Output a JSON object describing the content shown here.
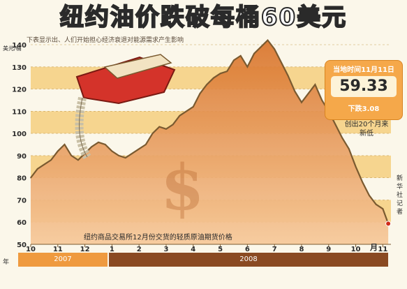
{
  "title": "纽约油价跌破每桶60美元",
  "subtitle": "下表显示出、人们开始担心经济衰退对能源需求产生影响",
  "unit_label": "美元/桶",
  "price_box": {
    "date": "当地时间11月11日",
    "value": "59.33",
    "change": "下跌3.08",
    "note": "创出20个月来新低"
  },
  "bottom_note": "纽约商品交易所12月份交货的轻质原油期货价格",
  "side_text": "新华社记者",
  "year_label": "年",
  "colors": {
    "band": "#f6d58f",
    "area_top": "#d9742a",
    "area_bottom": "#f6c899",
    "line": "#7a5a30",
    "accent": "#f5a84a",
    "year_2008": "#8a4a22"
  },
  "chart_data": {
    "type": "area",
    "title": "纽约油价跌破每桶60美元",
    "xlabel": "月",
    "ylabel": "美元/桶",
    "ylim": [
      50,
      140
    ],
    "yticks": [
      50,
      60,
      70,
      80,
      90,
      100,
      110,
      120,
      130,
      140
    ],
    "xtick_labels": [
      "10",
      "11",
      "12",
      "1",
      "2",
      "3",
      "4",
      "5",
      "6",
      "7",
      "8",
      "9",
      "10",
      "11"
    ],
    "years": [
      {
        "label": "2007",
        "months": [
          "10",
          "11",
          "12"
        ]
      },
      {
        "label": "2008",
        "months": [
          "1",
          "2",
          "3",
          "4",
          "5",
          "6",
          "7",
          "8",
          "9",
          "10",
          "11"
        ]
      }
    ],
    "x": [
      0,
      0.25,
      0.5,
      0.75,
      1,
      1.25,
      1.5,
      1.75,
      2,
      2.25,
      2.5,
      2.75,
      3,
      3.25,
      3.5,
      3.75,
      4,
      4.25,
      4.5,
      4.75,
      5,
      5.25,
      5.5,
      5.75,
      6,
      6.25,
      6.5,
      6.75,
      7,
      7.25,
      7.5,
      7.75,
      8,
      8.25,
      8.5,
      8.75,
      9,
      9.25,
      9.5,
      9.75,
      10,
      10.25,
      10.5,
      10.75,
      11,
      11.25,
      11.5,
      11.75,
      12,
      12.25,
      12.5,
      12.75,
      13,
      13.2
    ],
    "values": [
      80,
      84,
      86,
      88,
      92,
      95,
      90,
      88,
      91,
      94,
      96,
      95,
      92,
      90,
      89,
      91,
      93,
      95,
      100,
      103,
      102,
      104,
      108,
      110,
      112,
      118,
      122,
      125,
      127,
      128,
      133,
      135,
      130,
      136,
      139,
      142,
      138,
      132,
      126,
      119,
      114,
      118,
      122,
      115,
      110,
      104,
      98,
      93,
      85,
      78,
      72,
      68,
      66,
      59.33
    ],
    "grid": false,
    "legend": "none"
  }
}
